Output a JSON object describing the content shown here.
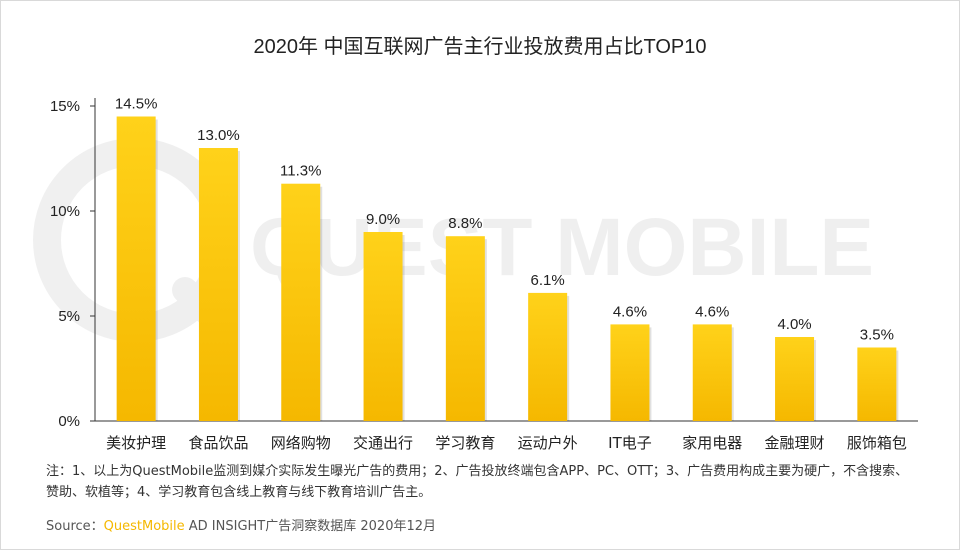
{
  "title": "2020年 中国互联网广告主行业投放费用占比TOP10",
  "watermark": "QUEST MOBILE",
  "note": "注：1、以上为QuestMobile监测到媒介实际发生曝光广告的费用；2、广告投放终端包含APP、PC、OTT；3、广告费用构成主要为硬广，不含搜索、赞助、软植等；4、学习教育包含线上教育与线下教育培训广告主。",
  "source": {
    "prefix": "Source：",
    "brand": "QuestMobile",
    "product": " AD INSIGHT",
    "suffix": "广告洞察数据库 2020年12月"
  },
  "colors": {
    "bar_top": "#ffd21a",
    "bar_bottom": "#f5b800",
    "axis": "#333333",
    "brand": "#f5b800"
  },
  "chart_data": {
    "type": "bar",
    "title": "2020年 中国互联网广告主行业投放费用占比TOP10",
    "categories": [
      "美妆护理",
      "食品饮品",
      "网络购物",
      "交通出行",
      "学习教育",
      "运动户外",
      "IT电子",
      "家用电器",
      "金融理财",
      "服饰箱包"
    ],
    "values": [
      14.5,
      13.0,
      11.3,
      9.0,
      8.8,
      6.1,
      4.6,
      4.6,
      4.0,
      3.5
    ],
    "value_labels": [
      "14.5%",
      "13.0%",
      "11.3%",
      "9.0%",
      "8.8%",
      "6.1%",
      "4.6%",
      "4.6%",
      "4.0%",
      "3.5%"
    ],
    "yticks": [
      0,
      5,
      10,
      15
    ],
    "ytick_labels": [
      "0%",
      "5%",
      "10%",
      "15%"
    ],
    "ylim": [
      0,
      15
    ],
    "grid": false,
    "legend": "none"
  }
}
